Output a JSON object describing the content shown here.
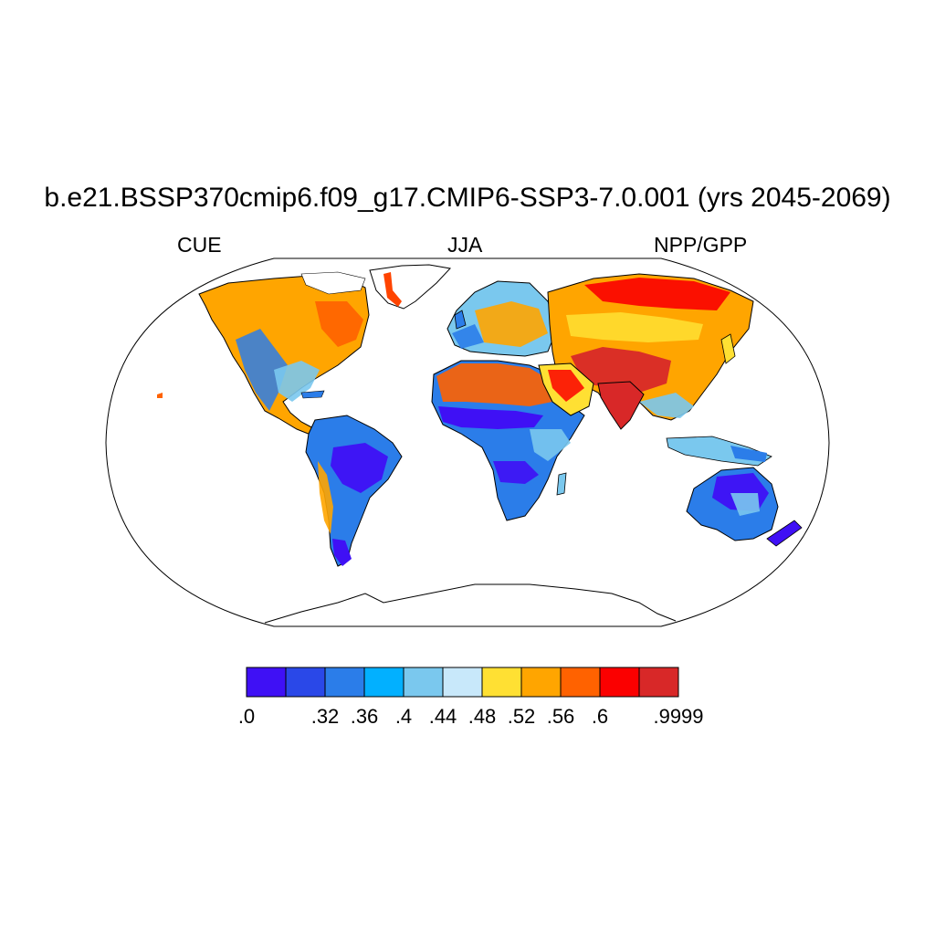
{
  "title": "b.e21.BSSP370cmip6.f09_g17.CMIP6-SSP3-7.0.001 (yrs 2045-2069)",
  "subtitle_left": "CUE",
  "subtitle_center": "JJA",
  "subtitle_right": "NPP/GPP",
  "colorbar": {
    "colors": [
      "#3f10f5",
      "#2a48e8",
      "#2b7de9",
      "#02b0ff",
      "#7ac8ee",
      "#c8e8fa",
      "#ffe033",
      "#ffa500",
      "#ff6200",
      "#fb0000",
      "#d82828"
    ],
    "labels": [
      ".0",
      ".32",
      ".36",
      ".4",
      ".44",
      ".48",
      ".52",
      ".56",
      ".6",
      ".9999"
    ],
    "label_edges": [
      0,
      2,
      3,
      4,
      5,
      6,
      7,
      8,
      9,
      11
    ]
  }
}
